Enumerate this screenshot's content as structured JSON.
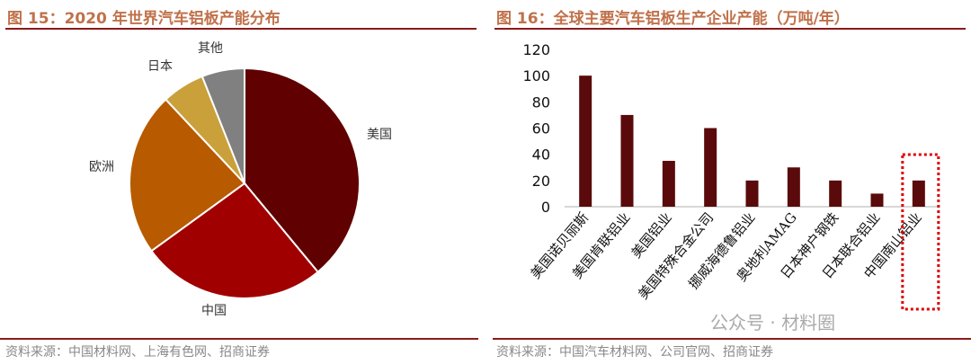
{
  "left": {
    "title": "图 15：2020 年世界汽车铝板产能分布",
    "source": "资料来源：中国材料网、上海有色网、招商证券"
  },
  "right": {
    "title": "图 16：全球主要汽车铝板生产企业产能（万吨/年）",
    "source": "资料来源：中国汽车材料网、公司官网、招商证券"
  },
  "watermark": "公众号 · 材料圈",
  "chart_data": [
    {
      "type": "pie",
      "categories": [
        "美国",
        "中国",
        "欧洲",
        "日本",
        "其他"
      ],
      "values": [
        39,
        26,
        23,
        6,
        6
      ],
      "colors": [
        "#600000",
        "#a00000",
        "#b85a00",
        "#c9a03a",
        "#808080"
      ],
      "start": "12 o'clock clockwise"
    },
    {
      "type": "bar",
      "categories": [
        "美国诺贝丽斯",
        "美国肯联铝业",
        "美国铝业",
        "美国特殊合金公司",
        "挪威海德鲁铝业",
        "奥地利AMAG",
        "日本神户钢铁",
        "日本联合铝业",
        "中国南山铝业"
      ],
      "values": [
        100,
        70,
        35,
        60,
        20,
        30,
        20,
        10,
        20
      ],
      "ylim": [
        0,
        120
      ],
      "yticks": [
        0,
        20,
        40,
        60,
        80,
        100,
        120
      ],
      "color": "#5a0a0a",
      "highlight": "中国南山铝业",
      "highlight_color": "#e00000"
    }
  ]
}
